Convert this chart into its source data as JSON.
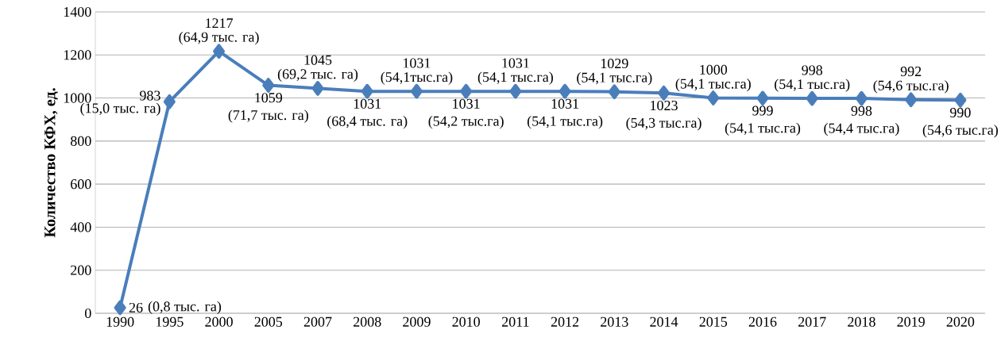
{
  "chart_data": {
    "type": "line",
    "ylabel": "Количество  КФХ, ед.",
    "categories": [
      "1990",
      "1995",
      "2000",
      "2005",
      "2007",
      "2008",
      "2009",
      "2010",
      "2011",
      "2012",
      "2013",
      "2014",
      "2015",
      "2016",
      "2017",
      "2018",
      "2019",
      "2020"
    ],
    "series": [
      {
        "color": "#4a7ebb",
        "values": [
          26,
          983,
          1217,
          1059,
          1045,
          1031,
          1031,
          1031,
          1031,
          1031,
          1029,
          1023,
          1000,
          999,
          998,
          998,
          992,
          990
        ]
      }
    ],
    "ylim": [
      0,
      1400
    ],
    "yticks": [
      0,
      200,
      400,
      600,
      800,
      1000,
      1200,
      1400
    ],
    "grid": "y",
    "marker": "diamond",
    "line_style": "solid",
    "data_labels": true,
    "annotations": [
      {
        "text": "(0,8 тыс. га)",
        "x": "1990",
        "y": 26
      },
      {
        "text": "(15,0 тыс. га)",
        "x": "1995",
        "y": 983
      },
      {
        "text": "(64,9 тыс. га)",
        "x": "2000",
        "y": 1217
      },
      {
        "text": "(71,7 тыс. га)",
        "x": "2005",
        "y": 1059
      },
      {
        "text": "(69,2 тыс. га)",
        "x": "2007",
        "y": 1045
      },
      {
        "text": "(68,4 тыс. га)",
        "x": "2008",
        "y": 1031
      },
      {
        "text": "(54,1тыс.га)",
        "x": "2009",
        "y": 1031
      },
      {
        "text": "(54,2 тыс.га)",
        "x": "2010",
        "y": 1031
      },
      {
        "text": "(54,1 тыс.га)",
        "x": "2011",
        "y": 1031
      },
      {
        "text": "(54,1 тыс.га)",
        "x": "2012",
        "y": 1031
      },
      {
        "text": "(54,1 тыс.га)",
        "x": "2013",
        "y": 1029
      },
      {
        "text": "(54,3 тыс.га)",
        "x": "2014",
        "y": 1023
      },
      {
        "text": "(54,1 тыс.га)",
        "x": "2015",
        "y": 1000
      },
      {
        "text": "(54,1 тыс.га)",
        "x": "2016",
        "y": 999
      },
      {
        "text": "(54,1 тыс.га)",
        "x": "2017",
        "y": 998
      },
      {
        "text": "(54,4 тыс.га)",
        "x": "2018",
        "y": 998
      },
      {
        "text": "(54,6 тыс.га)",
        "x": "2019",
        "y": 992
      },
      {
        "text": "(54,6 тыс.га)",
        "x": "2020",
        "y": 990
      }
    ]
  }
}
